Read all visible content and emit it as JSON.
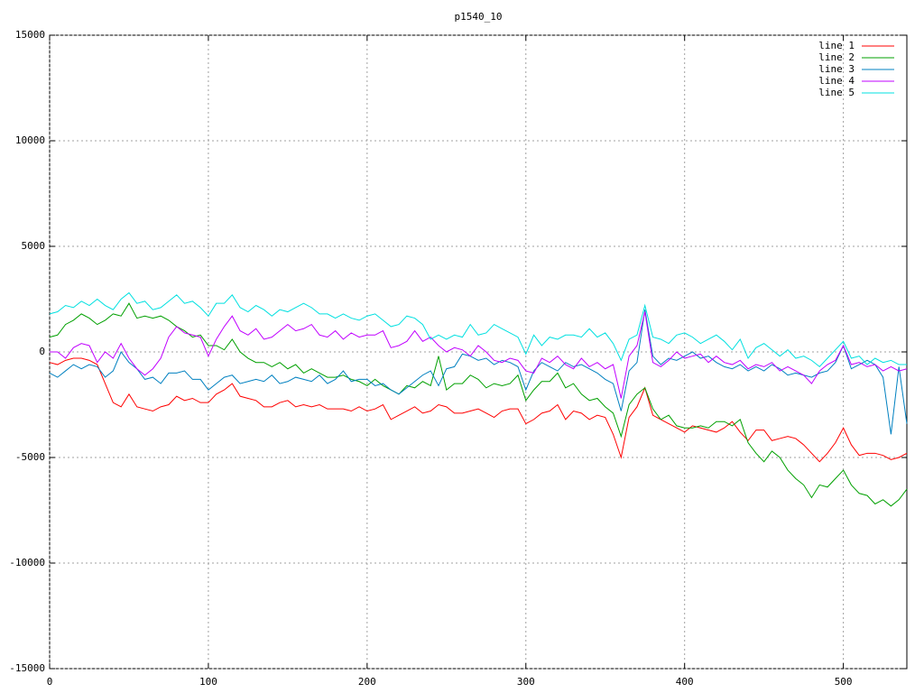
{
  "chart_data": {
    "type": "line",
    "title": "p1540_10",
    "x": [
      0,
      5,
      10,
      15,
      20,
      25,
      30,
      35,
      40,
      45,
      50,
      55,
      60,
      65,
      70,
      75,
      80,
      85,
      90,
      95,
      100,
      105,
      110,
      115,
      120,
      125,
      130,
      135,
      140,
      145,
      150,
      155,
      160,
      165,
      170,
      175,
      180,
      185,
      190,
      195,
      200,
      205,
      210,
      215,
      220,
      225,
      230,
      235,
      240,
      245,
      250,
      255,
      260,
      265,
      270,
      275,
      280,
      285,
      290,
      295,
      300,
      305,
      310,
      315,
      320,
      325,
      330,
      335,
      340,
      345,
      350,
      355,
      360,
      365,
      370,
      375,
      380,
      385,
      390,
      395,
      400,
      405,
      410,
      415,
      420,
      425,
      430,
      435,
      440,
      445,
      450,
      455,
      460,
      465,
      470,
      475,
      480,
      485,
      490,
      495,
      500,
      505,
      510,
      515,
      520,
      525,
      530,
      535,
      540
    ],
    "series": [
      {
        "name": "line 1",
        "color": "#ff0000",
        "values": [
          -500,
          -600,
          -400,
          -300,
          -300,
          -400,
          -600,
          -1500,
          -2400,
          -2600,
          -2000,
          -2600,
          -2700,
          -2800,
          -2600,
          -2500,
          -2100,
          -2300,
          -2200,
          -2400,
          -2400,
          -2000,
          -1800,
          -1500,
          -2100,
          -2200,
          -2300,
          -2600,
          -2600,
          -2400,
          -2300,
          -2600,
          -2500,
          -2600,
          -2500,
          -2700,
          -2700,
          -2700,
          -2800,
          -2600,
          -2800,
          -2700,
          -2500,
          -3200,
          -3000,
          -2800,
          -2600,
          -2900,
          -2800,
          -2500,
          -2600,
          -2900,
          -2900,
          -2800,
          -2700,
          -2900,
          -3100,
          -2800,
          -2700,
          -2700,
          -3400,
          -3200,
          -2900,
          -2800,
          -2500,
          -3200,
          -2800,
          -2900,
          -3200,
          -3000,
          -3100,
          -3900,
          -5000,
          -3100,
          -2600,
          -1700,
          -3000,
          -3200,
          -3400,
          -3600,
          -3800,
          -3500,
          -3600,
          -3700,
          -3800,
          -3600,
          -3300,
          -3800,
          -4200,
          -3700,
          -3700,
          -4200,
          -4100,
          -4000,
          -4100,
          -4400,
          -4800,
          -5200,
          -4800,
          -4300,
          -3600,
          -4400,
          -4900,
          -4800,
          -4800,
          -4900,
          -5100,
          -5000,
          -4800
        ]
      },
      {
        "name": "line 2",
        "color": "#00a000",
        "values": [
          700,
          800,
          1300,
          1500,
          1800,
          1600,
          1300,
          1500,
          1800,
          1700,
          2300,
          1600,
          1700,
          1600,
          1700,
          1500,
          1200,
          1000,
          700,
          800,
          300,
          300,
          100,
          600,
          0,
          -300,
          -500,
          -500,
          -700,
          -500,
          -800,
          -600,
          -1000,
          -800,
          -1000,
          -1200,
          -1200,
          -1100,
          -1300,
          -1400,
          -1600,
          -1300,
          -1600,
          -1800,
          -2000,
          -1600,
          -1700,
          -1400,
          -1600,
          -200,
          -1800,
          -1500,
          -1500,
          -1100,
          -1300,
          -1700,
          -1500,
          -1600,
          -1500,
          -1100,
          -2300,
          -1800,
          -1400,
          -1400,
          -1000,
          -1700,
          -1500,
          -2000,
          -2300,
          -2200,
          -2600,
          -2900,
          -4000,
          -2500,
          -2000,
          -1700,
          -2700,
          -3200,
          -3000,
          -3500,
          -3600,
          -3600,
          -3500,
          -3600,
          -3300,
          -3300,
          -3500,
          -3200,
          -4300,
          -4800,
          -5200,
          -4700,
          -5000,
          -5600,
          -6000,
          -6300,
          -6900,
          -6300,
          -6400,
          -6000,
          -5600,
          -6300,
          -6700,
          -6800,
          -7200,
          -7000,
          -7300,
          -7000,
          -6500
        ]
      },
      {
        "name": "line 3",
        "color": "#0080c0",
        "values": [
          -1000,
          -1200,
          -900,
          -600,
          -800,
          -600,
          -700,
          -1200,
          -900,
          0,
          -500,
          -800,
          -1300,
          -1200,
          -1500,
          -1000,
          -1000,
          -900,
          -1300,
          -1300,
          -1800,
          -1500,
          -1200,
          -1100,
          -1500,
          -1400,
          -1300,
          -1400,
          -1100,
          -1500,
          -1400,
          -1200,
          -1300,
          -1400,
          -1100,
          -1500,
          -1300,
          -900,
          -1400,
          -1300,
          -1300,
          -1600,
          -1500,
          -1800,
          -2000,
          -1700,
          -1400,
          -1100,
          -900,
          -1600,
          -800,
          -700,
          -100,
          -200,
          -400,
          -300,
          -600,
          -400,
          -500,
          -700,
          -1800,
          -900,
          -500,
          -700,
          -900,
          -500,
          -700,
          -600,
          -800,
          -1000,
          -1300,
          -1500,
          -2800,
          -900,
          -500,
          2000,
          -200,
          -600,
          -300,
          -400,
          -200,
          0,
          -300,
          -200,
          -500,
          -700,
          -800,
          -600,
          -900,
          -700,
          -900,
          -600,
          -800,
          -1100,
          -1000,
          -1100,
          -1200,
          -1000,
          -900,
          -500,
          300,
          -800,
          -600,
          -400,
          -600,
          -1200,
          -3900,
          -700,
          -3400
        ]
      },
      {
        "name": "line 4",
        "color": "#c000ff",
        "values": [
          0,
          0,
          -300,
          200,
          400,
          300,
          -500,
          0,
          -300,
          400,
          -300,
          -800,
          -1100,
          -800,
          -300,
          700,
          1200,
          900,
          800,
          700,
          -200,
          600,
          1200,
          1700,
          1000,
          800,
          1100,
          600,
          700,
          1000,
          1300,
          1000,
          1100,
          1300,
          800,
          700,
          1000,
          600,
          900,
          700,
          800,
          800,
          1000,
          200,
          300,
          500,
          1000,
          500,
          700,
          300,
          0,
          200,
          100,
          -200,
          300,
          0,
          -400,
          -500,
          -300,
          -400,
          -900,
          -1000,
          -300,
          -500,
          -200,
          -600,
          -800,
          -300,
          -700,
          -500,
          -800,
          -600,
          -2200,
          -200,
          300,
          1900,
          -500,
          -700,
          -400,
          0,
          -300,
          -200,
          -100,
          -500,
          -200,
          -500,
          -600,
          -400,
          -800,
          -600,
          -700,
          -500,
          -900,
          -700,
          -900,
          -1100,
          -1500,
          -900,
          -600,
          -400,
          300,
          -600,
          -500,
          -700,
          -600,
          -900,
          -700,
          -900,
          -800
        ]
      },
      {
        "name": "line 5",
        "color": "#00e0e0",
        "values": [
          1800,
          1900,
          2200,
          2100,
          2400,
          2200,
          2500,
          2200,
          2000,
          2500,
          2800,
          2300,
          2400,
          2000,
          2100,
          2400,
          2700,
          2300,
          2400,
          2100,
          1700,
          2300,
          2300,
          2700,
          2100,
          1900,
          2200,
          2000,
          1700,
          2000,
          1900,
          2100,
          2300,
          2100,
          1800,
          1800,
          1600,
          1800,
          1600,
          1500,
          1700,
          1800,
          1500,
          1200,
          1300,
          1700,
          1600,
          1300,
          600,
          800,
          600,
          800,
          700,
          1300,
          800,
          900,
          1300,
          1100,
          900,
          700,
          -100,
          800,
          300,
          700,
          600,
          800,
          800,
          700,
          1100,
          700,
          900,
          400,
          -400,
          600,
          800,
          2200,
          700,
          600,
          400,
          800,
          900,
          700,
          400,
          600,
          800,
          500,
          100,
          600,
          -300,
          200,
          400,
          100,
          -200,
          100,
          -300,
          -200,
          -400,
          -700,
          -300,
          100,
          500,
          -300,
          -200,
          -600,
          -300,
          -500,
          -400,
          -600,
          -600
        ]
      }
    ],
    "xlim": [
      0,
      540
    ],
    "ylim": [
      -15000,
      15000
    ],
    "xticks": [
      0,
      100,
      200,
      300,
      400,
      500
    ],
    "yticks": [
      -15000,
      -10000,
      -5000,
      0,
      5000,
      10000,
      15000
    ],
    "grid": true,
    "legend": "top-right"
  }
}
